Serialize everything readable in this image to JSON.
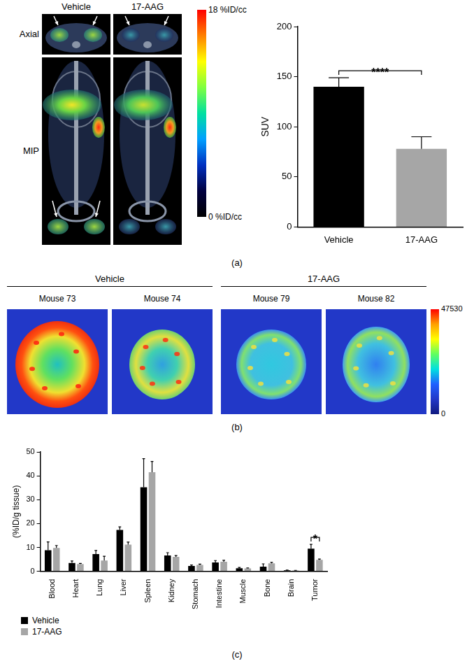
{
  "chart_data": [
    {
      "type": "bar",
      "categories": [
        "Vehicle",
        "17-AAG"
      ],
      "values": [
        140,
        78
      ],
      "errors": [
        9,
        12
      ],
      "colors": [
        "#000000",
        "#a6a6a6"
      ],
      "ylabel": "SUV",
      "ylim": [
        0,
        200
      ],
      "yticks": [
        0,
        50,
        100,
        150,
        200
      ],
      "grid": false,
      "annotations": [
        {
          "text": "****",
          "from": "Vehicle",
          "to": "17-AAG"
        }
      ]
    },
    {
      "type": "bar",
      "categories": [
        "Blood",
        "Heart",
        "Lung",
        "Liver",
        "Spleen",
        "Kidney",
        "Stomach",
        "Intestine",
        "Muscle",
        "Bone",
        "Brain",
        "Tumor"
      ],
      "series": [
        {
          "name": "Vehicle",
          "color": "#000000",
          "values": [
            8.8,
            3.5,
            7.2,
            17.3,
            35.2,
            6.6,
            2.2,
            3.7,
            1.3,
            1.9,
            0.4,
            9.5
          ],
          "errors": [
            3.5,
            0.8,
            1.5,
            1.3,
            12,
            1.2,
            0.4,
            0.8,
            0.3,
            1.2,
            0.1,
            1.8
          ]
        },
        {
          "name": "17-AAG",
          "color": "#a6a6a6",
          "values": [
            9.8,
            3.0,
            4.5,
            11.2,
            41.5,
            6.0,
            2.7,
            4.0,
            1.2,
            3.3,
            0.3,
            4.8
          ],
          "errors": [
            1.0,
            0.3,
            1.8,
            1.0,
            4.5,
            0.6,
            0.3,
            0.6,
            0.2,
            0.4,
            0.1,
            0.3
          ]
        }
      ],
      "ylabel": "(%ID/g tissue)",
      "ylim": [
        0,
        50
      ],
      "yticks": [
        0,
        10,
        20,
        30,
        40,
        50
      ],
      "grid": false,
      "legend": "bottom",
      "annotations": [
        {
          "text": "*",
          "category": "Tumor"
        }
      ]
    }
  ],
  "panels": {
    "a": {
      "label": "(a)",
      "columns": [
        "Vehicle",
        "17-AAG"
      ],
      "rows": [
        "Axial",
        "MIP"
      ],
      "colorbar": {
        "range": [
          0,
          18
        ],
        "ticks": [
          {
            "value": 18,
            "label": "18 %ID/cc"
          },
          {
            "value": 0,
            "label": "0 %ID/cc"
          }
        ]
      }
    },
    "b": {
      "label": "(b)",
      "groups": [
        {
          "name": "Vehicle",
          "images": [
            "Mouse 73",
            "Mouse 74"
          ]
        },
        {
          "name": "17-AAG",
          "images": [
            "Mouse 79",
            "Mouse 82"
          ]
        }
      ],
      "colorbar": {
        "range": [
          0,
          47530
        ],
        "ticks": [
          0,
          47530
        ]
      }
    },
    "c": {
      "label": "(c)"
    }
  }
}
